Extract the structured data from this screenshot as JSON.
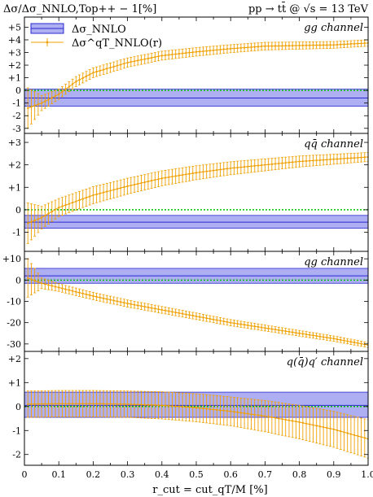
{
  "header": {
    "left": "Δσ/Δσ_NNLO,Top++ − 1[%]",
    "right": "pp → tt̄ @ √s = 13 TeV"
  },
  "legend": {
    "items": [
      {
        "label": "Δσ_NNLO",
        "color": "#2a2ad0"
      },
      {
        "label": "Δσ^qT_NNLO(r)",
        "color": "#f0a000"
      }
    ]
  },
  "x_axis": {
    "label": "r_cut = cut_qT/M [%]",
    "ticks": [
      "0",
      "0.1",
      "0.2",
      "0.3",
      "0.4",
      "0.5",
      "0.6",
      "0.7",
      "0.8",
      "0.9",
      "1.0"
    ]
  },
  "colors": {
    "band_fill": "#aeaef2",
    "band_line": "#2a2ad0",
    "points": "#f0a000",
    "zero_line": "#00c000"
  },
  "chart_data": [
    {
      "type": "line",
      "channel": "gg channel",
      "ylim": [
        -3.4,
        5.8
      ],
      "yticks": [
        "-3",
        "-2",
        "-1",
        "0",
        "+1",
        "+2",
        "+3",
        "+4",
        "+5"
      ],
      "ytick_values": [
        -3,
        -2,
        -1,
        0,
        1,
        2,
        3,
        4,
        5
      ],
      "nnlo_band": {
        "center": -0.6,
        "low": -1.25,
        "high": 0.1
      },
      "series": [
        {
          "x_range": [
            0.01,
            1.0
          ],
          "x_step": 0.01,
          "y_key": {
            "x": [
              0.01,
              0.05,
              0.1,
              0.15,
              0.2,
              0.3,
              0.4,
              0.5,
              0.6,
              0.7,
              0.8,
              0.9,
              1.0
            ],
            "y": [
              -1.4,
              -1.0,
              -0.3,
              0.7,
              1.4,
              2.2,
              2.75,
              3.05,
              3.3,
              3.5,
              3.55,
              3.6,
              3.75
            ]
          },
          "err_key": {
            "x": [
              0.01,
              0.05,
              0.1,
              1.0
            ],
            "e": [
              1.6,
              0.6,
              0.4,
              0.25
            ]
          }
        }
      ]
    },
    {
      "type": "line",
      "channel": "qq̄ channel",
      "ylim": [
        -1.85,
        3.4
      ],
      "yticks": [
        "-1",
        "0",
        "+1",
        "+2",
        "+3"
      ],
      "ytick_values": [
        -1,
        0,
        1,
        2,
        3
      ],
      "nnlo_band": {
        "center": -0.55,
        "low": -0.82,
        "high": -0.25
      },
      "series": [
        {
          "x_range": [
            0.01,
            1.0
          ],
          "x_step": 0.01,
          "y_key": {
            "x": [
              0.01,
              0.05,
              0.1,
              0.2,
              0.3,
              0.4,
              0.5,
              0.6,
              0.7,
              0.8,
              0.9,
              1.0
            ],
            "y": [
              -0.6,
              -0.35,
              0.1,
              0.65,
              1.05,
              1.4,
              1.65,
              1.85,
              2.0,
              2.15,
              2.25,
              2.35
            ]
          },
          "err_key": {
            "x": [
              0.01,
              0.05,
              0.1,
              1.0
            ],
            "e": [
              0.9,
              0.5,
              0.4,
              0.2
            ]
          }
        }
      ]
    },
    {
      "type": "line",
      "channel": "qg channel",
      "ylim": [
        -33.5,
        13.5
      ],
      "yticks": [
        "-30",
        "-20",
        "-10",
        "0",
        "+10"
      ],
      "ytick_values": [
        -30,
        -20,
        -10,
        0,
        10
      ],
      "nnlo_band": {
        "center": 2.0,
        "low": -1.5,
        "high": 5.5
      },
      "series": [
        {
          "x_range": [
            0.01,
            1.0
          ],
          "x_step": 0.01,
          "y_key": {
            "x": [
              0.01,
              0.05,
              0.1,
              0.2,
              0.3,
              0.4,
              0.5,
              0.6,
              0.7,
              0.8,
              0.9,
              1.0
            ],
            "y": [
              1.0,
              -1.5,
              -3.5,
              -7.5,
              -11.0,
              -14.0,
              -17.0,
              -20.0,
              -22.5,
              -25.0,
              -27.5,
              -30.5
            ]
          },
          "err_key": {
            "x": [
              0.01,
              0.05,
              0.1,
              1.0
            ],
            "e": [
              9.0,
              2.5,
              1.8,
              1.2
            ]
          }
        }
      ]
    },
    {
      "type": "line",
      "channel": "q(q̄)q′ channel",
      "ylim": [
        -2.45,
        2.3
      ],
      "yticks": [
        "-2",
        "-1",
        "0",
        "+1",
        "+2"
      ],
      "ytick_values": [
        -2,
        -1,
        0,
        1,
        2
      ],
      "nnlo_band": {
        "center": 0.05,
        "low": -0.45,
        "high": 0.6
      },
      "series": [
        {
          "x_range": [
            0.01,
            1.0
          ],
          "x_step": 0.01,
          "y_key": {
            "x": [
              0.01,
              0.1,
              0.2,
              0.3,
              0.4,
              0.5,
              0.6,
              0.7,
              0.8,
              0.9,
              1.0
            ],
            "y": [
              0.1,
              0.12,
              0.12,
              0.1,
              0.05,
              -0.05,
              -0.2,
              -0.4,
              -0.65,
              -0.95,
              -1.35
            ]
          },
          "err_key": {
            "x": [
              0.01,
              0.3,
              0.6,
              0.8,
              1.0
            ],
            "e": [
              0.55,
              0.55,
              0.6,
              0.7,
              0.8
            ]
          }
        }
      ]
    }
  ]
}
